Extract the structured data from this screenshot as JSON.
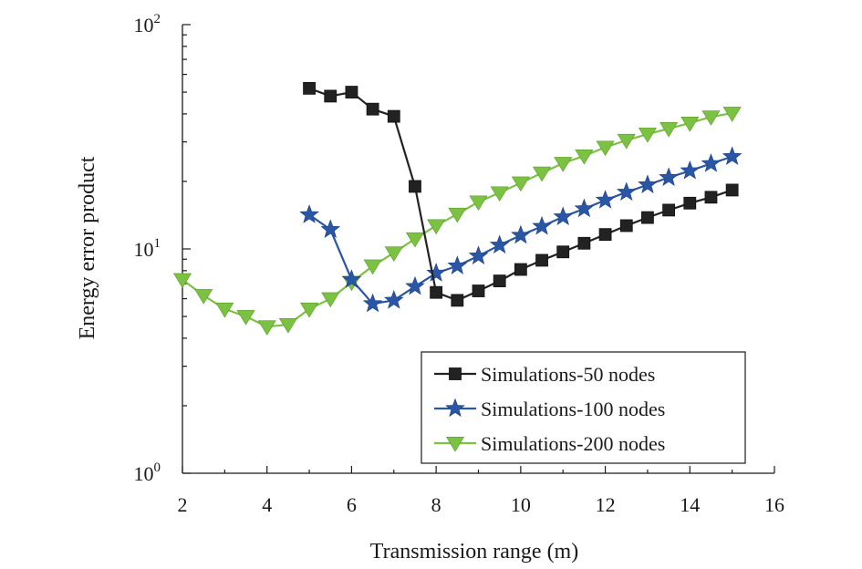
{
  "chart_data": {
    "type": "line",
    "title": "",
    "xlabel": "Transmission range (m)",
    "ylabel": "Energy error product",
    "xlim": [
      2,
      16
    ],
    "ylim": [
      1,
      100
    ],
    "yscale": "log",
    "grid": false,
    "legend_position": "bottom-right",
    "x_ticks": [
      "2",
      "4",
      "6",
      "8",
      "10",
      "12",
      "14",
      "16"
    ],
    "y_ticks": [
      {
        "value": 1,
        "base": "10",
        "exp": "0"
      },
      {
        "value": 10,
        "base": "10",
        "exp": "1"
      },
      {
        "value": 100,
        "base": "10",
        "exp": "2"
      }
    ],
    "series": [
      {
        "name": "Simulations-50 nodes",
        "color": "#222222",
        "marker": "square",
        "x": [
          5,
          5.5,
          6,
          6.5,
          7,
          7.5,
          8,
          8.5,
          9,
          9.5,
          10,
          10.5,
          11,
          11.5,
          12,
          12.5,
          13,
          13.5,
          14,
          14.5,
          15
        ],
        "y": [
          52,
          48,
          50,
          42,
          39,
          19,
          6.4,
          5.9,
          6.5,
          7.2,
          8.1,
          8.9,
          9.7,
          10.6,
          11.6,
          12.7,
          13.8,
          14.9,
          16.0,
          17.0,
          18.3
        ]
      },
      {
        "name": "Simulations-100 nodes",
        "color": "#2a56a6",
        "marker": "star",
        "x": [
          5,
          5.5,
          6,
          6.5,
          7,
          7.5,
          8,
          8.5,
          9,
          9.5,
          10,
          10.5,
          11,
          11.5,
          12,
          12.5,
          13,
          13.5,
          14,
          14.5,
          15
        ],
        "y": [
          14.2,
          12.2,
          7.3,
          5.7,
          5.9,
          6.8,
          7.8,
          8.4,
          9.3,
          10.4,
          11.5,
          12.6,
          13.9,
          15.1,
          16.5,
          17.9,
          19.3,
          20.8,
          22.3,
          24.0,
          25.8
        ]
      },
      {
        "name": "Simulations-200 nodes",
        "color": "#7cc242",
        "marker": "triangle-down",
        "x": [
          2,
          2.5,
          3,
          3.5,
          4,
          4.5,
          5,
          5.5,
          6,
          6.5,
          7,
          7.5,
          8,
          8.5,
          9,
          9.5,
          10,
          10.5,
          11,
          11.5,
          12,
          12.5,
          13,
          13.5,
          14,
          14.5,
          15
        ],
        "y": [
          7.3,
          6.2,
          5.4,
          5.0,
          4.5,
          4.6,
          5.4,
          6.0,
          7.1,
          8.4,
          9.6,
          11.1,
          12.7,
          14.3,
          16.2,
          17.8,
          19.7,
          21.8,
          24.1,
          26.0,
          28.4,
          30.5,
          32.5,
          34.4,
          36.4,
          38.8,
          40.3
        ]
      }
    ]
  }
}
